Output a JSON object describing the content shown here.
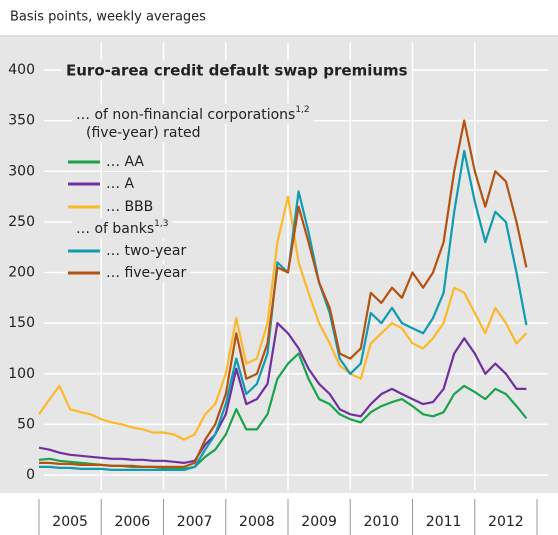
{
  "chart_data": {
    "type": "line",
    "subtitle": "Basis points, weekly averages",
    "title": "Euro-area credit default swap premiums",
    "annotations": [
      {
        "text": "… of non-financial corporations",
        "note": "1,2"
      },
      {
        "text": "(five-year) rated"
      },
      {
        "text": "… of banks",
        "note": "1,3"
      }
    ],
    "x": [
      2005.0,
      2005.17,
      2005.33,
      2005.5,
      2005.67,
      2005.83,
      2006.0,
      2006.17,
      2006.33,
      2006.5,
      2006.67,
      2006.83,
      2007.0,
      2007.17,
      2007.33,
      2007.5,
      2007.67,
      2007.83,
      2008.0,
      2008.17,
      2008.33,
      2008.5,
      2008.67,
      2008.83,
      2009.0,
      2009.17,
      2009.33,
      2009.5,
      2009.67,
      2009.83,
      2010.0,
      2010.17,
      2010.33,
      2010.5,
      2010.67,
      2010.83,
      2011.0,
      2011.17,
      2011.33,
      2011.5,
      2011.67,
      2011.83,
      2012.0,
      2012.17,
      2012.33,
      2012.5,
      2012.67,
      2012.83
    ],
    "series": [
      {
        "name": "… AA",
        "color": "#1aa34a",
        "values": [
          15,
          16,
          14,
          13,
          12,
          11,
          10,
          9,
          9,
          8,
          8,
          8,
          7,
          6,
          6,
          8,
          18,
          25,
          40,
          65,
          45,
          45,
          60,
          95,
          110,
          120,
          95,
          75,
          70,
          60,
          55,
          52,
          62,
          68,
          72,
          75,
          68,
          60,
          58,
          62,
          80,
          88,
          82,
          75,
          85,
          80,
          68,
          56
        ]
      },
      {
        "name": "… A",
        "color": "#7030a0",
        "values": [
          27,
          25,
          22,
          20,
          19,
          18,
          17,
          16,
          16,
          15,
          15,
          14,
          14,
          13,
          12,
          14,
          30,
          40,
          60,
          105,
          70,
          75,
          90,
          150,
          140,
          125,
          105,
          90,
          80,
          65,
          60,
          58,
          70,
          80,
          85,
          80,
          75,
          70,
          72,
          85,
          120,
          135,
          120,
          100,
          110,
          100,
          85,
          85
        ]
      },
      {
        "name": "… BBB",
        "color": "#fbb92a",
        "values": [
          60,
          75,
          88,
          65,
          62,
          60,
          55,
          52,
          50,
          47,
          45,
          42,
          42,
          40,
          35,
          40,
          60,
          70,
          100,
          155,
          110,
          115,
          150,
          230,
          275,
          210,
          180,
          150,
          130,
          108,
          100,
          95,
          130,
          140,
          150,
          145,
          130,
          125,
          135,
          150,
          185,
          180,
          160,
          140,
          165,
          150,
          130,
          140
        ]
      },
      {
        "name": "… two-year",
        "color": "#0f9bb0",
        "values": [
          8,
          8,
          7,
          7,
          6,
          6,
          6,
          5,
          5,
          5,
          5,
          5,
          5,
          5,
          5,
          8,
          25,
          40,
          70,
          115,
          80,
          90,
          120,
          210,
          200,
          280,
          240,
          190,
          160,
          115,
          100,
          110,
          160,
          150,
          165,
          150,
          145,
          140,
          155,
          180,
          260,
          320,
          270,
          230,
          260,
          250,
          200,
          148
        ]
      },
      {
        "name": "… five-year",
        "color": "#b5520f",
        "values": [
          12,
          12,
          11,
          11,
          10,
          10,
          10,
          9,
          9,
          9,
          8,
          8,
          8,
          8,
          8,
          12,
          35,
          50,
          80,
          140,
          95,
          100,
          130,
          205,
          200,
          265,
          230,
          190,
          165,
          120,
          115,
          125,
          180,
          170,
          185,
          175,
          200,
          185,
          200,
          230,
          300,
          350,
          300,
          265,
          300,
          290,
          250,
          205
        ]
      }
    ],
    "xlim": [
      2005,
      2013
    ],
    "xticks": [
      {
        "value": 2005,
        "label": "2005"
      },
      {
        "value": 2006,
        "label": "2006"
      },
      {
        "value": 2007,
        "label": "2007"
      },
      {
        "value": 2008,
        "label": "2008"
      },
      {
        "value": 2009,
        "label": "2009"
      },
      {
        "value": 2010,
        "label": "2010"
      },
      {
        "value": 2011,
        "label": "2011"
      },
      {
        "value": 2012,
        "label": "2012"
      }
    ],
    "ylim": [
      0,
      400
    ],
    "yticks": [
      0,
      50,
      100,
      150,
      200,
      250,
      300,
      350,
      400
    ],
    "grid": true
  }
}
